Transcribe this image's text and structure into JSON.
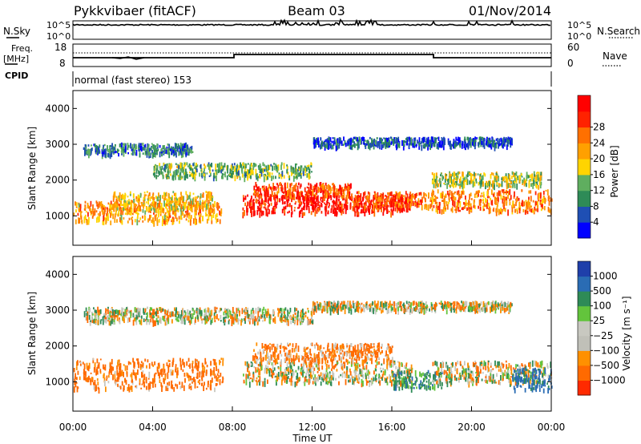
{
  "header": {
    "station": "Pykkvibaer (fitACF)",
    "beam": "Beam 03",
    "date": "01/Nov/2014"
  },
  "nsky_panel": {
    "label": "N.Sky",
    "right_label": "N.Search",
    "tick_top": "10^5",
    "tick_bottom": "10^0"
  },
  "freq_panel": {
    "label_line1": "Freq.",
    "label_line2": "[MHz]",
    "right_label": "Nave",
    "left_ticks": [
      "18",
      "8"
    ],
    "right_ticks": [
      "60",
      "0"
    ]
  },
  "cpid_panel": {
    "label": "CPID",
    "mode_text": "normal (fast stereo) 153"
  },
  "colors": {
    "power_scale": [
      "#0000ff",
      "#1f4fb4",
      "#2e8b57",
      "#5fae5f",
      "#ffd400",
      "#ffa000",
      "#ff7000",
      "#ff2200",
      "#ff0000"
    ],
    "velocity_scale": [
      "#1f3faa",
      "#2a6cb4",
      "#2e8b57",
      "#63c43c",
      "#c8c8c0",
      "#c0c0b8",
      "#ff9000",
      "#ff6a00",
      "#ff2a00"
    ]
  },
  "chart_data": [
    {
      "type": "heatmap",
      "name": "power",
      "ylabel": "Slant Range [km]",
      "ylim": [
        180,
        4500
      ],
      "yticks": [
        "1000",
        "2000",
        "3000",
        "4000"
      ],
      "colorbar_label": "Power [dB]",
      "colorbar_ticks": [
        "4",
        "8",
        "12",
        "16",
        "20",
        "24",
        "28"
      ],
      "colorbar_range": [
        0,
        32
      ],
      "echo_bands": [
        {
          "t_start": 0,
          "t_end": 7.5,
          "r_center": 1150,
          "r_width": 280,
          "value": 20
        },
        {
          "t_start": 2,
          "t_end": 7,
          "r_center": 1450,
          "r_width": 250,
          "value": 18
        },
        {
          "t_start": 8.5,
          "t_end": 17,
          "r_center": 1350,
          "r_width": 250,
          "value": 29
        },
        {
          "t_start": 9,
          "t_end": 14,
          "r_center": 1750,
          "r_width": 200,
          "value": 26
        },
        {
          "t_start": 14,
          "t_end": 18,
          "r_center": 1500,
          "r_width": 200,
          "value": 24
        },
        {
          "t_start": 18,
          "t_end": 24,
          "r_center": 1450,
          "r_width": 300,
          "value": 22
        },
        {
          "t_start": 18,
          "t_end": 23.5,
          "r_center": 2050,
          "r_width": 200,
          "value": 14
        },
        {
          "t_start": 0.5,
          "t_end": 6,
          "r_center": 2900,
          "r_width": 150,
          "value": 8
        },
        {
          "t_start": 4,
          "t_end": 12,
          "r_center": 2300,
          "r_width": 200,
          "value": 12
        },
        {
          "t_start": 12,
          "t_end": 22,
          "r_center": 3100,
          "r_width": 120,
          "value": 5
        }
      ]
    },
    {
      "type": "heatmap",
      "name": "velocity",
      "ylabel": "Slant Range [km]",
      "ylim": [
        180,
        4500
      ],
      "yticks": [
        "1000",
        "2000",
        "3000",
        "4000"
      ],
      "xlabel": "Time UT",
      "xticks": [
        "00:00",
        "04:00",
        "08:00",
        "12:00",
        "16:00",
        "20:00",
        "00:00"
      ],
      "xlim": [
        0,
        24
      ],
      "colorbar_label": "Velocity [m s⁻¹]",
      "colorbar_ticks": [
        "1000",
        "500",
        "100",
        "25",
        "−25",
        "−100",
        "−500",
        "−1000"
      ],
      "echo_bands": [
        {
          "t_start": 0,
          "t_end": 7.5,
          "r_center": 1250,
          "r_width": 420,
          "value": -200
        },
        {
          "t_start": 8.5,
          "t_end": 17,
          "r_center": 1300,
          "r_width": 300,
          "value": 0
        },
        {
          "t_start": 9,
          "t_end": 16,
          "r_center": 1850,
          "r_width": 250,
          "value": -150
        },
        {
          "t_start": 16,
          "t_end": 18.5,
          "r_center": 1100,
          "r_width": 250,
          "value": 200
        },
        {
          "t_start": 18,
          "t_end": 24,
          "r_center": 1300,
          "r_width": 300,
          "value": 0
        },
        {
          "t_start": 22,
          "t_end": 24,
          "r_center": 1100,
          "r_width": 300,
          "value": 400
        },
        {
          "t_start": 0.5,
          "t_end": 12,
          "r_center": 2900,
          "r_width": 200,
          "value": 0
        },
        {
          "t_start": 12,
          "t_end": 22,
          "r_center": 3150,
          "r_width": 120,
          "value": 0
        }
      ]
    }
  ]
}
